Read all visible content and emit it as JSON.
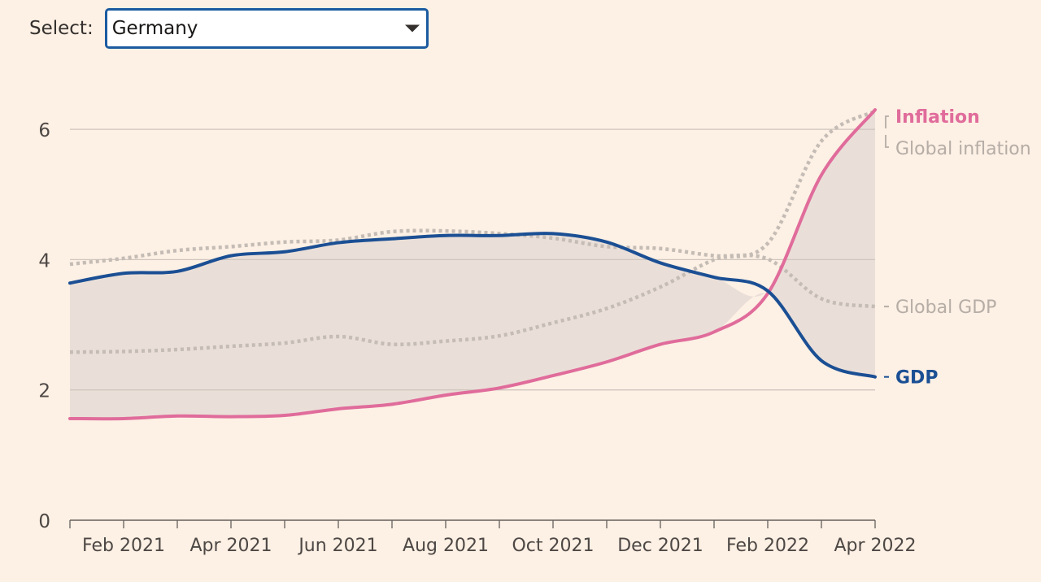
{
  "selector": {
    "label": "Select:",
    "value": "Germany"
  },
  "colors": {
    "background": "#fdf0e4",
    "inflation": "#e06c9b",
    "gdp": "#1b4f94",
    "global": "#c4bcb5",
    "band": "#e8ddd6",
    "grid": "#cfc6be",
    "axis": "#66605c"
  },
  "chart_data": {
    "type": "line",
    "x_range": [
      "2021-01",
      "2022-04"
    ],
    "ylim": [
      0,
      6.8
    ],
    "y_ticks": [
      0,
      2,
      4,
      6
    ],
    "x_ticks": [
      {
        "date": "2021-02",
        "label": "Feb 2021"
      },
      {
        "date": "2021-04",
        "label": "Apr 2021"
      },
      {
        "date": "2021-06",
        "label": "Jun 2021"
      },
      {
        "date": "2021-08",
        "label": "Aug 2021"
      },
      {
        "date": "2021-10",
        "label": "Oct 2021"
      },
      {
        "date": "2021-12",
        "label": "Dec 2021"
      },
      {
        "date": "2022-02",
        "label": "Feb 2022"
      },
      {
        "date": "2022-04",
        "label": "Apr 2022"
      }
    ],
    "series": [
      {
        "name": "Inflation",
        "key": "inflation",
        "style": "solid",
        "x": [
          "2021-01",
          "2021-02",
          "2021-03",
          "2021-04",
          "2021-05",
          "2021-06",
          "2021-07",
          "2021-08",
          "2021-09",
          "2021-10",
          "2021-11",
          "2021-12",
          "2022-01",
          "2022-02",
          "2022-03",
          "2022-04"
        ],
        "values": [
          1.56,
          1.56,
          1.6,
          1.59,
          1.61,
          1.71,
          1.78,
          1.92,
          2.03,
          2.22,
          2.43,
          2.7,
          2.89,
          3.48,
          5.3,
          6.3
        ]
      },
      {
        "name": "GDP",
        "key": "gdp",
        "style": "solid",
        "x": [
          "2021-01",
          "2021-02",
          "2021-03",
          "2021-04",
          "2021-05",
          "2021-06",
          "2021-07",
          "2021-08",
          "2021-09",
          "2021-10",
          "2021-11",
          "2021-12",
          "2022-01",
          "2022-02",
          "2022-03",
          "2022-04"
        ],
        "values": [
          3.64,
          3.79,
          3.82,
          4.06,
          4.12,
          4.26,
          4.32,
          4.37,
          4.37,
          4.4,
          4.27,
          3.95,
          3.73,
          3.52,
          2.45,
          2.2
        ]
      },
      {
        "name": "Global inflation",
        "key": "global_inflation",
        "style": "dotted",
        "x": [
          "2021-01",
          "2021-02",
          "2021-03",
          "2021-04",
          "2021-05",
          "2021-06",
          "2021-07",
          "2021-08",
          "2021-09",
          "2021-10",
          "2021-11",
          "2021-12",
          "2022-01",
          "2022-02",
          "2022-03",
          "2022-04"
        ],
        "values": [
          2.58,
          2.59,
          2.62,
          2.67,
          2.72,
          2.82,
          2.7,
          2.75,
          2.83,
          3.03,
          3.25,
          3.58,
          4.0,
          4.25,
          5.82,
          6.28
        ]
      },
      {
        "name": "Global GDP",
        "key": "global_gdp",
        "style": "dotted",
        "x": [
          "2021-01",
          "2021-02",
          "2021-03",
          "2021-04",
          "2021-05",
          "2021-06",
          "2021-07",
          "2021-08",
          "2021-09",
          "2021-10",
          "2021-11",
          "2021-12",
          "2022-01",
          "2022-02",
          "2022-03",
          "2022-04"
        ],
        "values": [
          3.93,
          4.02,
          4.14,
          4.2,
          4.27,
          4.3,
          4.43,
          4.44,
          4.4,
          4.33,
          4.2,
          4.17,
          4.06,
          4.01,
          3.4,
          3.28
        ]
      }
    ]
  }
}
